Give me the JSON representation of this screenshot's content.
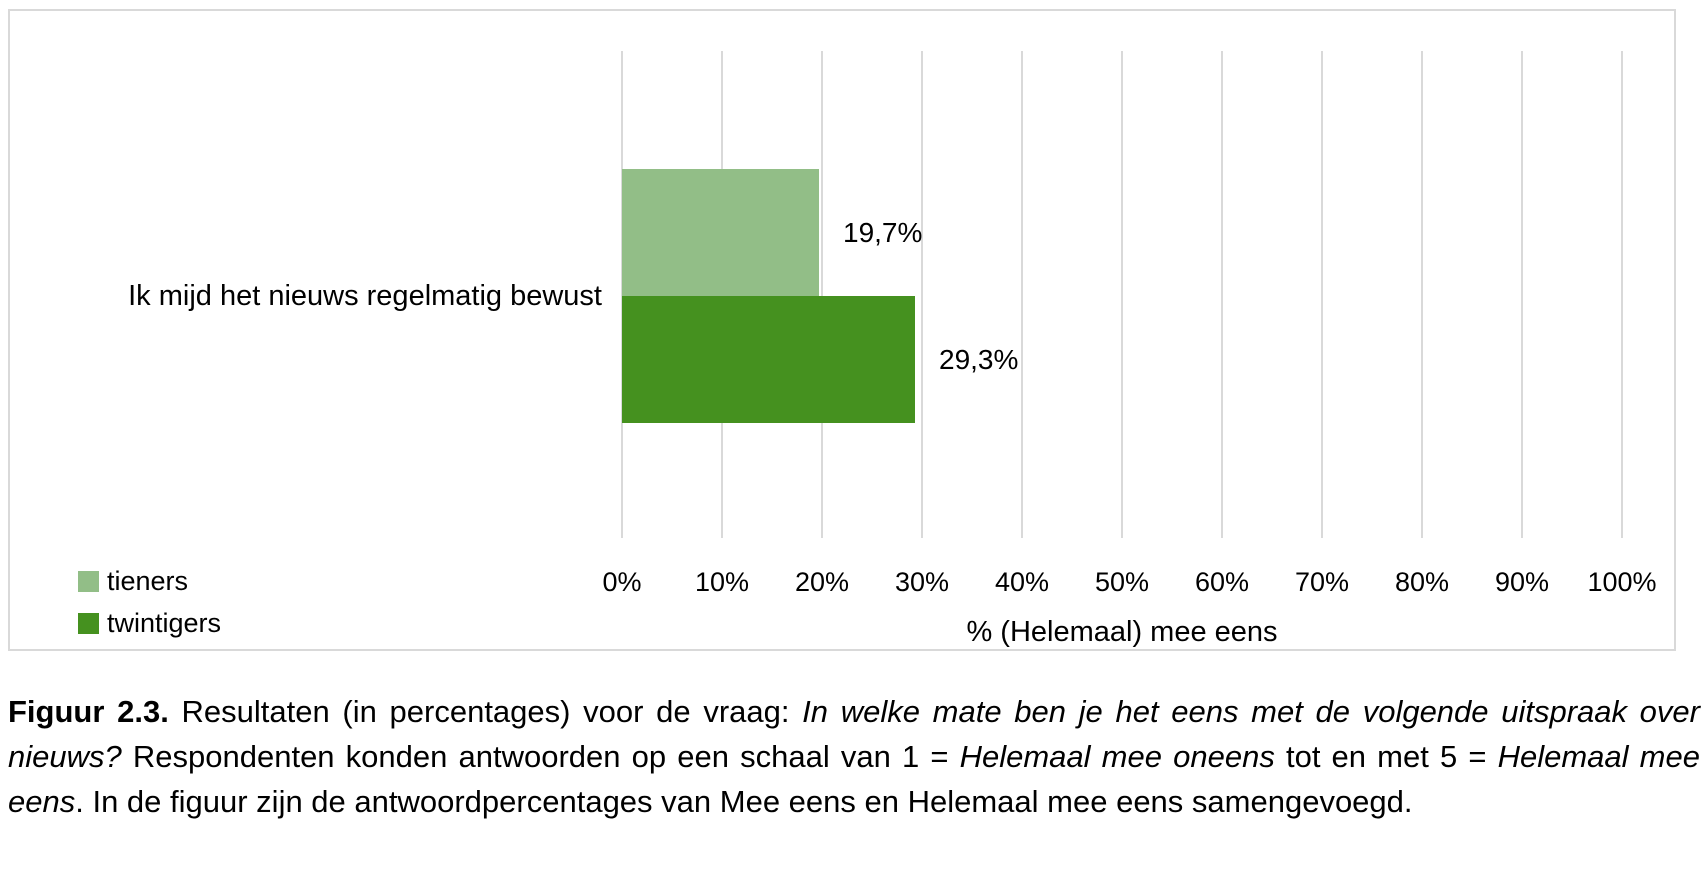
{
  "chart_data": {
    "type": "bar",
    "orientation": "horizontal",
    "category": "Ik mijd het nieuws regelmatig bewust",
    "series": [
      {
        "name": "tieners",
        "value": 19.7,
        "label": "19,7%",
        "color": "#92be87"
      },
      {
        "name": "twintigers",
        "value": 29.3,
        "label": "29,3%",
        "color": "#45911f"
      }
    ],
    "xlabel": "% (Helemaal) mee eens",
    "xlim": [
      0,
      100
    ],
    "x_ticks": [
      "0%",
      "10%",
      "20%",
      "30%",
      "40%",
      "50%",
      "60%",
      "70%",
      "80%",
      "90%",
      "100%"
    ],
    "grid": "vertical",
    "gridline_color": "#d9d9d9",
    "legend_position": "bottom-left"
  },
  "caption": {
    "segments": [
      {
        "text": "Figuur 2.3. ",
        "style": "bold"
      },
      {
        "text": "Resultaten (in percentages) voor de vraag: ",
        "style": "normal"
      },
      {
        "text": "In welke mate ben je het eens met de volgende uitspraak over nieuws?",
        "style": "italic"
      },
      {
        "text": " Respondenten konden antwoorden op een schaal van 1 = ",
        "style": "normal"
      },
      {
        "text": "Helemaal mee oneens",
        "style": "italic"
      },
      {
        "text": " tot en met 5 = ",
        "style": "normal"
      },
      {
        "text": "Helemaal mee eens",
        "style": "italic"
      },
      {
        "text": ". In de figuur zijn de antwoordpercentages van Mee eens en Helemaal mee eens samengevoegd.",
        "style": "normal"
      }
    ]
  },
  "colors": {
    "frame_border": "#d9d9d9",
    "text": "#000000",
    "background": "#ffffff"
  }
}
